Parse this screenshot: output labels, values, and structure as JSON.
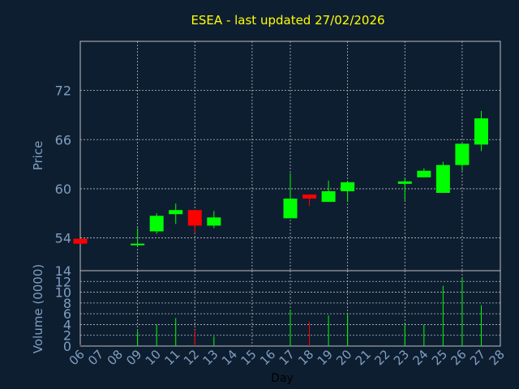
{
  "colors": {
    "background": "#0e1e31",
    "title": "#ffff00",
    "axis_text": "#7f9fbf",
    "grid": "#bfbfbf",
    "frame": "#bfbfbf",
    "up": "#00ff00",
    "down": "#ff0000",
    "xlabel": "#000000"
  },
  "chart_data": {
    "type": "candlestick",
    "title": "ESEA - last updated 27/02/2026",
    "xlabel": "Day",
    "ylabel": "Price",
    "volume_label": "Volume (0000)",
    "ylim": [
      50,
      78
    ],
    "yticks": [
      54,
      60,
      66,
      72
    ],
    "vol_ylim": [
      0,
      14
    ],
    "vol_ticks": [
      0,
      2,
      4,
      6,
      8,
      10,
      12,
      14
    ],
    "x_labels": [
      "06",
      "07",
      "08",
      "09",
      "10",
      "11",
      "12",
      "13",
      "14",
      "15",
      "16",
      "17",
      "18",
      "19",
      "20",
      "21",
      "22",
      "23",
      "24",
      "25",
      "26",
      "27",
      "28"
    ],
    "vertical_grid_labels": [
      "06",
      "09",
      "12",
      "15",
      "17",
      "20",
      "23",
      "26"
    ],
    "candles": [
      {
        "day": "06",
        "open": 53.9,
        "high": 53.9,
        "low": 53.3,
        "close": 53.3
      },
      {
        "day": "09",
        "open": 53.2,
        "high": 55.2,
        "low": 53.0,
        "close": 53.3
      },
      {
        "day": "10",
        "open": 54.8,
        "high": 57.0,
        "low": 54.5,
        "close": 56.7
      },
      {
        "day": "11",
        "open": 56.9,
        "high": 58.2,
        "low": 55.7,
        "close": 57.4
      },
      {
        "day": "12",
        "open": 57.4,
        "high": 57.4,
        "low": 54.6,
        "close": 55.5
      },
      {
        "day": "13",
        "open": 55.5,
        "high": 57.3,
        "low": 55.2,
        "close": 56.5
      },
      {
        "day": "17",
        "open": 56.4,
        "high": 61.9,
        "low": 56.4,
        "close": 58.8
      },
      {
        "day": "18",
        "open": 59.3,
        "high": 59.3,
        "low": 57.9,
        "close": 58.8
      },
      {
        "day": "19",
        "open": 58.4,
        "high": 61.0,
        "low": 58.4,
        "close": 59.7
      },
      {
        "day": "20",
        "open": 59.7,
        "high": 60.9,
        "low": 58.4,
        "close": 60.8
      },
      {
        "day": "23",
        "open": 60.6,
        "high": 61.3,
        "low": 58.6,
        "close": 60.9
      },
      {
        "day": "24",
        "open": 61.4,
        "high": 62.5,
        "low": 61.4,
        "close": 62.2
      },
      {
        "day": "25",
        "open": 59.5,
        "high": 63.3,
        "low": 59.5,
        "close": 62.9
      },
      {
        "day": "26",
        "open": 62.9,
        "high": 65.5,
        "low": 62.2,
        "close": 65.5
      },
      {
        "day": "27",
        "open": 65.4,
        "high": 69.5,
        "low": 64.6,
        "close": 68.6
      }
    ],
    "volume": [
      {
        "day": "06",
        "value": 0.2,
        "color": "down"
      },
      {
        "day": "09",
        "value": 2.8,
        "color": "up"
      },
      {
        "day": "10",
        "value": 4.0,
        "color": "up"
      },
      {
        "day": "11",
        "value": 5.2,
        "color": "up"
      },
      {
        "day": "12",
        "value": 3.0,
        "color": "down"
      },
      {
        "day": "13",
        "value": 1.8,
        "color": "up"
      },
      {
        "day": "17",
        "value": 6.8,
        "color": "up"
      },
      {
        "day": "18",
        "value": 4.5,
        "color": "down"
      },
      {
        "day": "19",
        "value": 5.7,
        "color": "up"
      },
      {
        "day": "20",
        "value": 6.0,
        "color": "up"
      },
      {
        "day": "23",
        "value": 4.2,
        "color": "up"
      },
      {
        "day": "24",
        "value": 4.0,
        "color": "up"
      },
      {
        "day": "25",
        "value": 11.2,
        "color": "up"
      },
      {
        "day": "26",
        "value": 12.7,
        "color": "up"
      },
      {
        "day": "27",
        "value": 7.6,
        "color": "up"
      }
    ]
  }
}
